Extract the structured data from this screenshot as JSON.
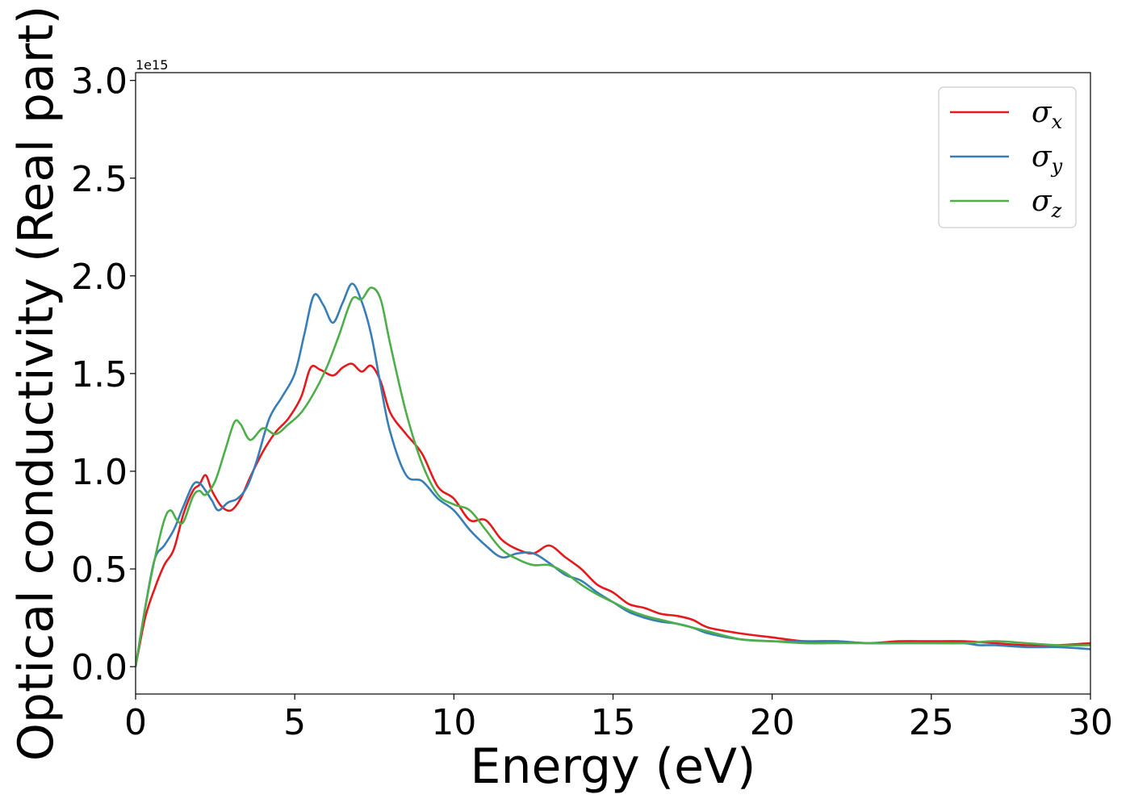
{
  "chart_data": {
    "type": "line",
    "title": "",
    "xlabel": "Energy (eV)",
    "ylabel": "Optical conductivity (Real part)",
    "y_offset_label": "1e15",
    "xlim": [
      0,
      30
    ],
    "ylim": [
      -0.14,
      3.04
    ],
    "xticks": [
      0,
      5,
      10,
      15,
      20,
      25,
      30
    ],
    "yticks": [
      0.0,
      0.5,
      1.0,
      1.5,
      2.0,
      2.5,
      3.0
    ],
    "xtick_labels": [
      "0",
      "5",
      "10",
      "15",
      "20",
      "25",
      "30"
    ],
    "ytick_labels": [
      "0.0",
      "0.5",
      "1.0",
      "1.5",
      "2.0",
      "2.5",
      "3.0"
    ],
    "grid": false,
    "legend_position": "top-right",
    "series": [
      {
        "name": "σx",
        "sub": "x",
        "color": "#e41a1c",
        "x": [
          0,
          0.3,
          0.6,
          0.9,
          1.2,
          1.5,
          1.8,
          2.0,
          2.2,
          2.4,
          2.7,
          3.0,
          3.3,
          3.6,
          4.0,
          4.4,
          4.8,
          5.2,
          5.5,
          5.8,
          6.2,
          6.5,
          6.8,
          7.1,
          7.4,
          7.7,
          8.0,
          8.5,
          9.0,
          9.5,
          10.0,
          10.5,
          11.0,
          11.5,
          12.0,
          12.5,
          13.0,
          13.5,
          14.0,
          14.5,
          15.0,
          15.5,
          16.0,
          16.5,
          17.0,
          17.5,
          18.0,
          19.0,
          20.0,
          21.0,
          22.0,
          23.0,
          24.0,
          25.0,
          26.0,
          27.0,
          28.0,
          29.0,
          30.0
        ],
        "values": [
          0.0,
          0.25,
          0.4,
          0.52,
          0.6,
          0.78,
          0.9,
          0.93,
          0.98,
          0.9,
          0.82,
          0.8,
          0.86,
          0.97,
          1.1,
          1.2,
          1.27,
          1.38,
          1.53,
          1.52,
          1.49,
          1.53,
          1.55,
          1.51,
          1.54,
          1.46,
          1.3,
          1.19,
          1.09,
          0.92,
          0.86,
          0.75,
          0.75,
          0.65,
          0.6,
          0.58,
          0.62,
          0.56,
          0.5,
          0.42,
          0.38,
          0.32,
          0.3,
          0.27,
          0.26,
          0.24,
          0.2,
          0.17,
          0.15,
          0.13,
          0.13,
          0.12,
          0.13,
          0.13,
          0.13,
          0.12,
          0.11,
          0.11,
          0.12
        ]
      },
      {
        "name": "σy",
        "sub": "y",
        "color": "#377eb8",
        "x": [
          0,
          0.3,
          0.6,
          0.9,
          1.2,
          1.5,
          1.8,
          2.0,
          2.2,
          2.4,
          2.6,
          2.9,
          3.2,
          3.5,
          3.8,
          4.2,
          4.6,
          5.0,
          5.3,
          5.6,
          5.9,
          6.2,
          6.5,
          6.8,
          7.1,
          7.4,
          7.7,
          8.0,
          8.5,
          9.0,
          9.5,
          10.0,
          10.5,
          11.0,
          11.5,
          12.0,
          12.5,
          13.0,
          13.5,
          14.0,
          14.5,
          15.0,
          15.5,
          16.0,
          16.5,
          17.0,
          17.5,
          18.0,
          19.0,
          20.0,
          21.0,
          22.0,
          23.0,
          24.0,
          25.0,
          26.0,
          26.5,
          27.0,
          28.0,
          29.0,
          30.0
        ],
        "values": [
          0.0,
          0.3,
          0.55,
          0.62,
          0.7,
          0.82,
          0.93,
          0.94,
          0.9,
          0.85,
          0.8,
          0.84,
          0.86,
          0.92,
          1.05,
          1.27,
          1.38,
          1.5,
          1.7,
          1.9,
          1.85,
          1.76,
          1.86,
          1.96,
          1.87,
          1.7,
          1.44,
          1.2,
          0.98,
          0.95,
          0.86,
          0.8,
          0.7,
          0.62,
          0.56,
          0.58,
          0.58,
          0.53,
          0.47,
          0.44,
          0.38,
          0.33,
          0.28,
          0.25,
          0.23,
          0.22,
          0.2,
          0.17,
          0.14,
          0.13,
          0.13,
          0.13,
          0.12,
          0.12,
          0.12,
          0.12,
          0.11,
          0.11,
          0.1,
          0.1,
          0.09
        ]
      },
      {
        "name": "σz",
        "sub": "z",
        "color": "#4daf4a",
        "x": [
          0,
          0.3,
          0.6,
          0.9,
          1.1,
          1.3,
          1.5,
          1.8,
          2.0,
          2.2,
          2.5,
          2.8,
          3.1,
          3.3,
          3.6,
          4.0,
          4.4,
          4.8,
          5.2,
          5.6,
          6.0,
          6.4,
          6.8,
          7.1,
          7.4,
          7.7,
          8.0,
          8.5,
          9.0,
          9.5,
          10.0,
          10.5,
          11.0,
          11.5,
          12.0,
          12.5,
          13.0,
          13.5,
          14.0,
          14.5,
          15.0,
          15.5,
          16.0,
          16.5,
          17.0,
          17.5,
          18.0,
          19.0,
          20.0,
          21.0,
          22.0,
          23.0,
          24.0,
          25.0,
          26.0,
          27.0,
          28.0,
          29.0,
          30.0
        ],
        "values": [
          0.0,
          0.3,
          0.55,
          0.75,
          0.8,
          0.75,
          0.74,
          0.87,
          0.9,
          0.88,
          0.95,
          1.1,
          1.25,
          1.24,
          1.16,
          1.22,
          1.19,
          1.24,
          1.3,
          1.4,
          1.53,
          1.7,
          1.88,
          1.88,
          1.94,
          1.88,
          1.65,
          1.3,
          1.04,
          0.88,
          0.83,
          0.8,
          0.7,
          0.6,
          0.55,
          0.52,
          0.52,
          0.48,
          0.42,
          0.37,
          0.33,
          0.29,
          0.26,
          0.24,
          0.22,
          0.2,
          0.18,
          0.14,
          0.13,
          0.12,
          0.12,
          0.12,
          0.12,
          0.12,
          0.12,
          0.13,
          0.12,
          0.11,
          0.11
        ]
      }
    ]
  }
}
